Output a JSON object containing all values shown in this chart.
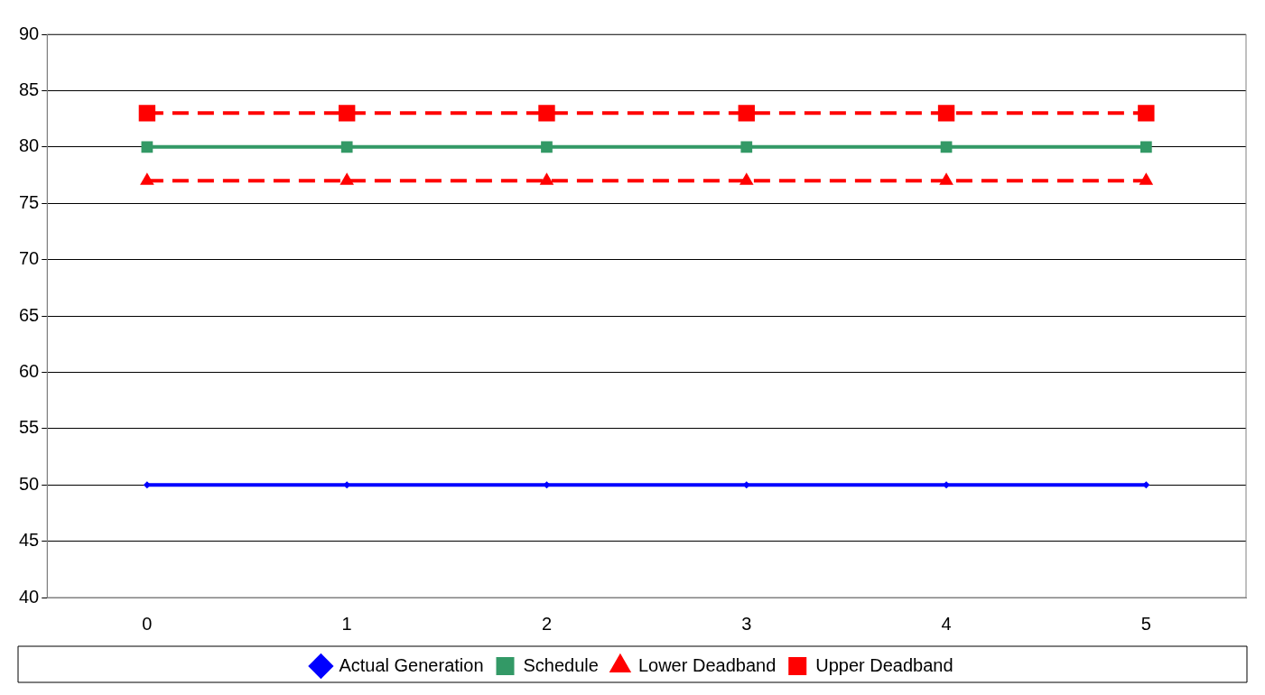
{
  "chart_data": {
    "type": "line",
    "categories": [
      "0",
      "1",
      "2",
      "3",
      "4",
      "5"
    ],
    "series": [
      {
        "name": "Actual Generation",
        "color": "#0000ff",
        "values": [
          50,
          50,
          50,
          50,
          50,
          50
        ],
        "marker": "diamond",
        "line_style": "solid"
      },
      {
        "name": "Schedule",
        "color": "#339966",
        "values": [
          80,
          80,
          80,
          80,
          80,
          80
        ],
        "marker": "square",
        "line_style": "solid"
      },
      {
        "name": "Lower Deadband",
        "color": "#ff0000",
        "values": [
          77,
          77,
          77,
          77,
          77,
          77
        ],
        "marker": "triangle",
        "line_style": "dashed"
      },
      {
        "name": "Upper Deadband",
        "color": "#ff0000",
        "values": [
          83,
          83,
          83,
          83,
          83,
          83
        ],
        "marker": "square",
        "line_style": "dashed"
      }
    ],
    "ylim": [
      40,
      90
    ],
    "yticks": [
      40,
      45,
      50,
      55,
      60,
      65,
      70,
      75,
      80,
      85,
      90
    ],
    "grid": "y",
    "legend": "bottom"
  }
}
